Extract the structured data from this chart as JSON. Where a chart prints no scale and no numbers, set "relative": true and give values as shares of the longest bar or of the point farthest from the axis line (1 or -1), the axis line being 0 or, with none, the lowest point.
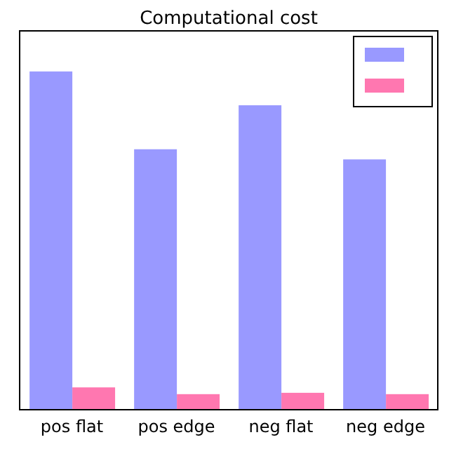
{
  "chart_data": {
    "type": "bar",
    "title": "Computational cost",
    "relative": true,
    "categories": [
      "pos flat",
      "pos edge",
      "neg flat",
      "neg edge"
    ],
    "series": [
      {
        "color": "#9999ff",
        "values": [
          1,
          0.77,
          0.9,
          0.74
        ]
      },
      {
        "color": "#ff77b0",
        "values": [
          0.066,
          0.046,
          0.05,
          0.046
        ]
      }
    ]
  }
}
